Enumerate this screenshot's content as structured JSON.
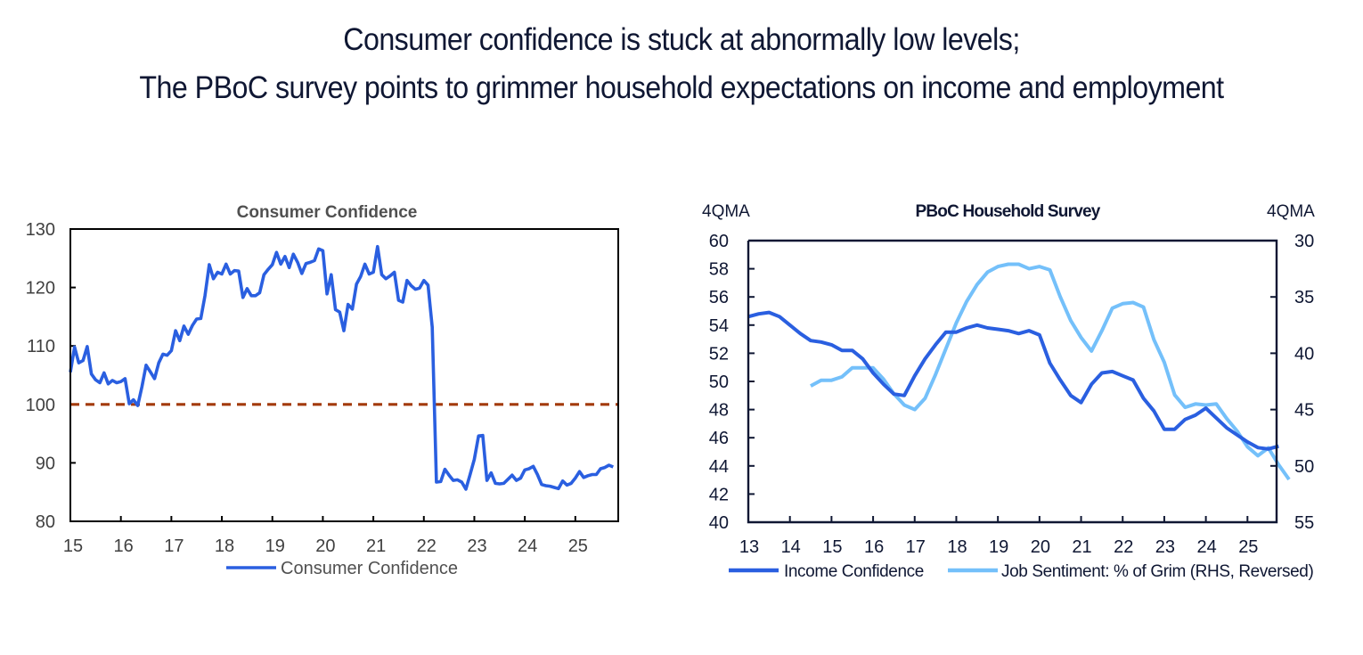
{
  "headline": {
    "line1": "Consumer confidence is stuck at abnormally low levels;",
    "line2": "The PBoC survey points to grimmer household expectations on income and employment"
  },
  "colors": {
    "consumer_confidence": "#2a5fe0",
    "reference_line": "#a33a0a",
    "income_confidence": "#2a5fe0",
    "job_sentiment": "#74c0fa",
    "axis": "#0f1733",
    "text_dark": "#0f1733",
    "text_gray": "#505050"
  },
  "chart_data": [
    {
      "type": "line",
      "title": "Consumer Confidence",
      "xlabel": "",
      "ylabel": "",
      "x_tick_labels": [
        "15",
        "16",
        "17",
        "18",
        "19",
        "20",
        "21",
        "22",
        "23",
        "24",
        "25"
      ],
      "y_tick_labels": [
        "80",
        "90",
        "100",
        "110",
        "120",
        "130"
      ],
      "ylim": [
        80,
        130
      ],
      "xlim": [
        2015.0,
        2025.85
      ],
      "grid": false,
      "legend": {
        "placement": "bottom-center",
        "entries": [
          "Consumer Confidence"
        ]
      },
      "reference_line": {
        "y": 100,
        "style": "dashed"
      },
      "x_start": 2015.0,
      "x_step": 0.08333,
      "series": [
        {
          "name": "Consumer Confidence",
          "values": [
            105.5,
            109.8,
            107.1,
            107.5,
            109.9,
            105.2,
            104.2,
            103.7,
            105.4,
            103.5,
            104.1,
            103.7,
            103.9,
            104.4,
            100.1,
            100.8,
            99.8,
            103.0,
            106.7,
            105.6,
            104.4,
            107.1,
            108.6,
            108.4,
            109.2,
            112.6,
            110.9,
            113.4,
            112.0,
            113.5,
            114.6,
            114.7,
            118.6,
            123.9,
            121.5,
            122.6,
            122.3,
            124.0,
            122.3,
            122.9,
            122.8,
            118.3,
            119.8,
            118.6,
            118.6,
            119.1,
            122.2,
            123.1,
            123.9,
            126.0,
            124.0,
            125.3,
            123.4,
            125.7,
            124.3,
            122.4,
            124.1,
            124.3,
            124.6,
            126.6,
            126.3,
            118.9,
            122.2,
            116.2,
            115.8,
            112.6,
            117.1,
            116.3,
            120.6,
            121.9,
            124.0,
            122.3,
            122.6,
            127.0,
            122.2,
            121.5,
            122.0,
            122.6,
            117.8,
            117.5,
            121.2,
            120.3,
            119.7,
            119.9,
            121.2,
            120.4,
            113.2,
            86.7,
            86.8,
            88.9,
            87.9,
            87.0,
            87.1,
            86.7,
            85.5,
            88.0,
            90.6,
            94.6,
            94.7,
            87.0,
            88.3,
            86.5,
            86.4,
            86.5,
            87.2,
            87.9,
            87.0,
            87.4,
            88.8,
            89.0,
            89.4,
            88.0,
            86.3,
            86.1,
            86.0,
            85.8,
            85.6,
            86.9,
            86.2,
            86.5,
            87.4,
            88.5,
            87.5,
            87.8,
            88.0,
            88.0,
            89.0,
            89.2,
            89.6,
            89.3
          ]
        }
      ]
    },
    {
      "type": "line",
      "title": "PBoC Household Survey",
      "xlabel": "",
      "ylabel_left": "4QMA",
      "ylabel_right": "4QMA",
      "x_tick_labels": [
        "13",
        "14",
        "15",
        "16",
        "17",
        "18",
        "19",
        "20",
        "21",
        "22",
        "23",
        "24",
        "25"
      ],
      "y_tick_labels_left": [
        "40",
        "42",
        "44",
        "46",
        "48",
        "50",
        "52",
        "54",
        "56",
        "58",
        "60"
      ],
      "y_tick_labels_right": [
        "30",
        "35",
        "40",
        "45",
        "50",
        "55"
      ],
      "ylim_left": [
        40,
        60
      ],
      "ylim_right": [
        30,
        55
      ],
      "right_axis_reversed": true,
      "xlim": [
        2013.0,
        2025.7
      ],
      "grid": false,
      "legend": {
        "placement": "bottom-center",
        "entries": [
          "Income Confidence",
          "Job Sentiment: % of Grim (RHS, Reversed)"
        ]
      },
      "series": [
        {
          "name": "Income Confidence",
          "axis": "left",
          "x_start": 2013.0,
          "x_step": 0.25,
          "values": [
            54.6,
            54.8,
            54.9,
            54.6,
            54.0,
            53.4,
            52.9,
            52.8,
            52.6,
            52.2,
            52.2,
            51.6,
            50.6,
            49.8,
            49.1,
            49.0,
            50.4,
            51.6,
            52.6,
            53.5,
            53.5,
            53.8,
            54.0,
            53.8,
            53.7,
            53.6,
            53.4,
            53.6,
            53.3,
            51.3,
            50.1,
            49.0,
            48.5,
            49.8,
            50.6,
            50.7,
            50.4,
            50.1,
            48.8,
            47.9,
            46.6,
            46.6,
            47.3,
            47.6,
            48.1,
            47.4,
            46.7,
            46.2,
            45.7,
            45.3,
            45.2,
            45.4
          ]
        },
        {
          "name": "Job Sentiment: % of Grim (RHS, Reversed)",
          "axis": "right",
          "x_start": 2014.5,
          "x_step": 0.25,
          "values": [
            42.9,
            42.4,
            42.4,
            42.1,
            41.3,
            41.3,
            41.3,
            42.3,
            43.6,
            44.6,
            45.0,
            44.0,
            41.9,
            39.6,
            37.3,
            35.4,
            33.9,
            32.8,
            32.3,
            32.1,
            32.1,
            32.5,
            32.3,
            32.6,
            35.0,
            37.1,
            38.6,
            39.8,
            38.0,
            36.0,
            35.6,
            35.5,
            35.9,
            38.8,
            40.8,
            43.7,
            44.8,
            44.5,
            44.6,
            44.5,
            45.8,
            46.9,
            48.3,
            49.1,
            48.4,
            49.9,
            51.2
          ]
        }
      ]
    }
  ]
}
